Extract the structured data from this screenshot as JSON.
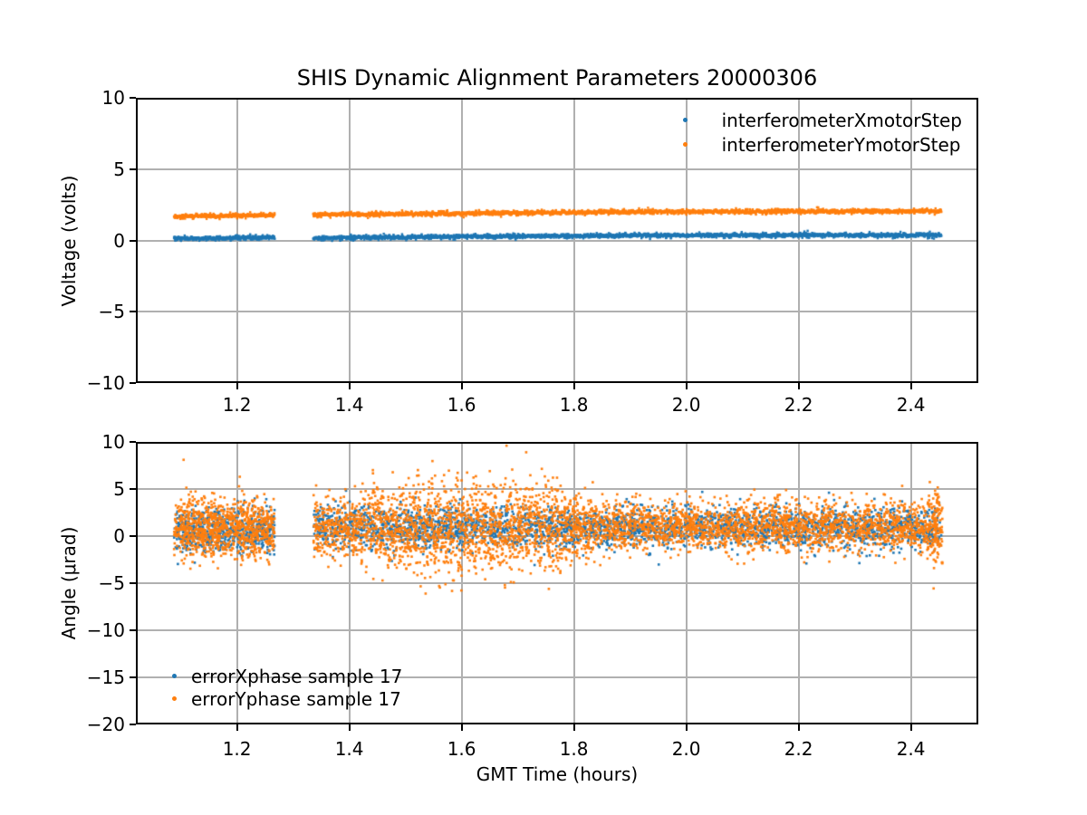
{
  "title": "SHIS Dynamic Alignment Parameters 20000306",
  "colors": {
    "blue": "#1f77b4",
    "orange": "#ff7f0e",
    "grid": "#b0b0b0",
    "spine": "#000000",
    "text": "#000000",
    "background": "#ffffff"
  },
  "top_plot": {
    "ylabel": "Voltage (volts)",
    "xticks": [
      {
        "label": "1.2",
        "value": 1.2
      },
      {
        "label": "1.4",
        "value": 1.4
      },
      {
        "label": "1.6",
        "value": 1.6
      },
      {
        "label": "1.8",
        "value": 1.8
      },
      {
        "label": "2.0",
        "value": 2.0
      },
      {
        "label": "2.2",
        "value": 2.2
      },
      {
        "label": "2.4",
        "value": 2.4
      }
    ],
    "yticks": [
      {
        "label": "10",
        "value": 10
      },
      {
        "label": "5",
        "value": 5
      },
      {
        "label": "0",
        "value": 0
      },
      {
        "label": "−5",
        "value": -5
      },
      {
        "label": "−10",
        "value": -10
      }
    ],
    "legend": [
      {
        "label": "interferometerXmotorStep",
        "color": "#1f77b4"
      },
      {
        "label": "interferometerYmotorStep",
        "color": "#ff7f0e"
      }
    ]
  },
  "bottom_plot": {
    "xlabel": "GMT Time (hours)",
    "ylabel": "Angle (μrad)",
    "xticks": [
      {
        "label": "1.2",
        "value": 1.2
      },
      {
        "label": "1.4",
        "value": 1.4
      },
      {
        "label": "1.6",
        "value": 1.6
      },
      {
        "label": "1.8",
        "value": 1.8
      },
      {
        "label": "2.0",
        "value": 2.0
      },
      {
        "label": "2.2",
        "value": 2.2
      },
      {
        "label": "2.4",
        "value": 2.4
      }
    ],
    "yticks": [
      {
        "label": "10",
        "value": 10
      },
      {
        "label": "5",
        "value": 5
      },
      {
        "label": "0",
        "value": 0
      },
      {
        "label": "−5",
        "value": -5
      },
      {
        "label": "−10",
        "value": -10
      },
      {
        "label": "−15",
        "value": -15
      },
      {
        "label": "−20",
        "value": -20
      }
    ],
    "legend": [
      {
        "label": "errorXphase sample 17",
        "color": "#1f77b4"
      },
      {
        "label": "errorYphase sample 17",
        "color": "#ff7f0e"
      }
    ]
  },
  "chart_data": [
    {
      "type": "scatter",
      "title": "SHIS Dynamic Alignment Parameters 20000306",
      "xlabel": "",
      "ylabel": "Voltage (volts)",
      "xlim": [
        1.02,
        2.52
      ],
      "ylim": [
        -10,
        10
      ],
      "xtick_values": [
        1.2,
        1.4,
        1.6,
        1.8,
        2.0,
        2.2,
        2.4
      ],
      "ytick_values": [
        -10,
        -5,
        0,
        5,
        10
      ],
      "grid": true,
      "legend_position": "upper right",
      "time_blocks": [
        [
          1.088,
          1.267
        ],
        [
          1.336,
          2.454
        ]
      ],
      "series": [
        {
          "name": "interferometerXmotorStep",
          "color": "#1f77b4",
          "marker": "dot",
          "band_sigma": 0.05,
          "segments": [
            {
              "t0": 1.088,
              "t1": 1.267,
              "v0": 0.12,
              "v1": 0.22
            },
            {
              "t0": 1.336,
              "t1": 1.9,
              "v0": 0.18,
              "v1": 0.35
            },
            {
              "t0": 1.9,
              "t1": 2.454,
              "v0": 0.35,
              "v1": 0.38
            }
          ]
        },
        {
          "name": "interferometerYmotorStep",
          "color": "#ff7f0e",
          "marker": "dot",
          "band_sigma": 0.05,
          "segments": [
            {
              "t0": 1.088,
              "t1": 1.267,
              "v0": 1.68,
              "v1": 1.77
            },
            {
              "t0": 1.336,
              "t1": 1.9,
              "v0": 1.8,
              "v1": 2.0
            },
            {
              "t0": 1.9,
              "t1": 2.454,
              "v0": 2.0,
              "v1": 2.05
            }
          ]
        }
      ]
    },
    {
      "type": "scatter",
      "title": "",
      "xlabel": "GMT Time (hours)",
      "ylabel": "Angle (μrad)",
      "xlim": [
        1.02,
        2.52
      ],
      "ylim": [
        -20,
        10
      ],
      "xtick_values": [
        1.2,
        1.4,
        1.6,
        1.8,
        2.0,
        2.2,
        2.4
      ],
      "ytick_values": [
        -20,
        -15,
        -10,
        -5,
        0,
        5,
        10
      ],
      "grid": true,
      "legend_position": "lower left",
      "time_blocks": [
        [
          1.088,
          1.267
        ],
        [
          1.336,
          2.454
        ]
      ],
      "series": [
        {
          "name": "errorXphase sample 17",
          "color": "#1f77b4",
          "marker": "dot",
          "clusters": [
            {
              "t0": 1.088,
              "t1": 1.267,
              "n": 650,
              "mean": 0.6,
              "std": 1.15
            },
            {
              "t0": 1.336,
              "t1": 2.454,
              "n": 2900,
              "mean": 0.9,
              "std": 1.05
            }
          ],
          "outliers": []
        },
        {
          "name": "errorYphase sample 17",
          "color": "#ff7f0e",
          "marker": "dot",
          "clusters": [
            {
              "t0": 1.088,
              "t1": 1.267,
              "n": 950,
              "mean": 0.9,
              "std": 1.5
            },
            {
              "t0": 1.336,
              "t1": 1.42,
              "n": 320,
              "mean": 0.9,
              "std": 1.55
            },
            {
              "t0": 1.42,
              "t1": 1.5,
              "n": 330,
              "mean": 1.0,
              "std": 1.95
            },
            {
              "t0": 1.5,
              "t1": 1.78,
              "n": 1200,
              "mean": 1.0,
              "std": 2.45
            },
            {
              "t0": 1.78,
              "t1": 1.84,
              "n": 250,
              "mean": 1.0,
              "std": 1.8
            },
            {
              "t0": 1.84,
              "t1": 2.43,
              "n": 2050,
              "mean": 1.0,
              "std": 1.3
            },
            {
              "t0": 2.43,
              "t1": 2.456,
              "n": 150,
              "mean": 1.2,
              "std": 2.0
            }
          ],
          "outliers": [
            [
              1.105,
              8.1
            ],
            [
              1.205,
              6.3
            ],
            [
              1.56,
              -5.3
            ],
            [
              1.68,
              9.6
            ],
            [
              1.715,
              8.9
            ]
          ]
        }
      ]
    }
  ]
}
